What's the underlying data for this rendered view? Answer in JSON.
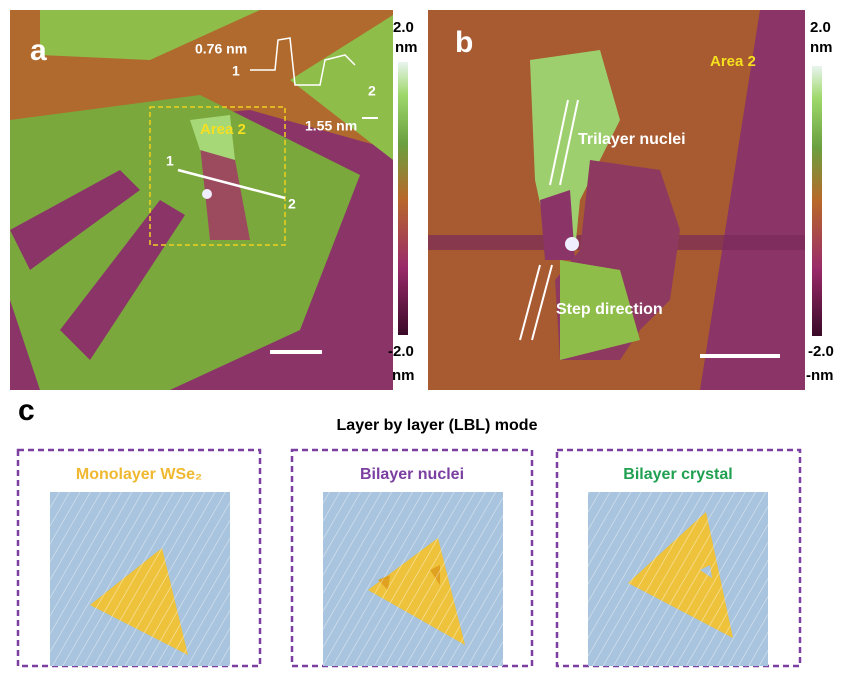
{
  "panel_a": {
    "label": "a",
    "step_height_1": "0.76 nm",
    "step_height_2": "1.55 nm",
    "profile_mark_1": "1",
    "profile_mark_2": "2",
    "area": "Area 2",
    "line_start": "1",
    "line_end": "2",
    "colorbar_max": "2.0",
    "colorbar_max_unit": "nm",
    "colorbar_min": "-2.0",
    "colorbar_min_unit": "nm"
  },
  "panel_b": {
    "label": "b",
    "area": "Area 2",
    "trilayer": "Trilayer nuclei",
    "step": "Step direction",
    "colorbar_max": "2.0",
    "colorbar_max_unit": "nm",
    "colorbar_min": "-2.0",
    "colorbar_min_unit": "-nm"
  },
  "panel_c": {
    "label": "c",
    "title": "Layer by layer (LBL) mode",
    "boxes": [
      "Monolayer WSe₂",
      "Bilayer nuclei",
      "Bilayer crystal"
    ]
  }
}
